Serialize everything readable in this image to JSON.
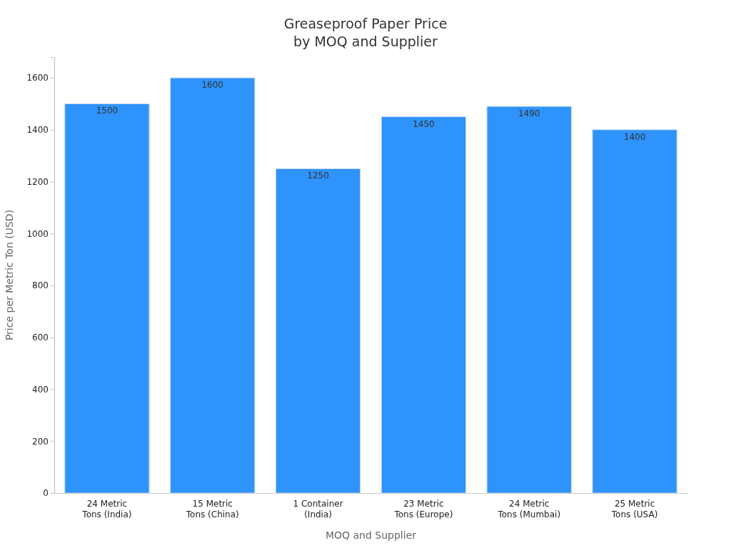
{
  "chart_data": {
    "type": "bar",
    "title": "Greaseproof Paper Price\nby MOQ and Supplier",
    "xlabel": "MOQ and Supplier",
    "ylabel": "Price per Metric Ton (USD)",
    "categories": [
      "24 Metric\nTons (India)",
      "15 Metric\nTons (China)",
      "1 Container\n(India)",
      "23 Metric\nTons (Europe)",
      "24 Metric\nTons (Mumbai)",
      "25 Metric\nTons (USA)"
    ],
    "values": [
      1500,
      1600,
      1250,
      1450,
      1490,
      1400
    ],
    "color": "#2e93fa",
    "ylim": [
      0,
      1680
    ],
    "yticks": [
      0,
      200,
      400,
      600,
      800,
      1000,
      1200,
      1400,
      1600
    ],
    "data_labels": true
  }
}
